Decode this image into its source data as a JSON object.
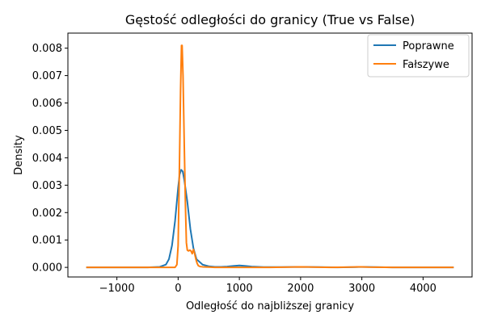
{
  "chart_data": {
    "type": "line",
    "title": "Gęstość odległości do granicy (True vs False)",
    "xlabel": "Odległość do najbliższej granicy",
    "ylabel": "Density",
    "xlim": [
      -1800,
      4800
    ],
    "ylim": [
      -0.00035,
      0.00855
    ],
    "xticks": [
      -1000,
      0,
      1000,
      2000,
      3000,
      4000
    ],
    "xtick_labels": [
      "−1000",
      "0",
      "1000",
      "2000",
      "3000",
      "4000"
    ],
    "yticks": [
      0.0,
      0.001,
      0.002,
      0.003,
      0.004,
      0.005,
      0.006,
      0.007,
      0.008
    ],
    "ytick_labels": [
      "0.000",
      "0.001",
      "0.002",
      "0.003",
      "0.004",
      "0.005",
      "0.006",
      "0.007",
      "0.008"
    ],
    "grid": false,
    "legend_position": "top-right",
    "series": [
      {
        "name": "Poprawne",
        "color": "#1f77b4",
        "x": [
          -1500,
          -500,
          -300,
          -200,
          -150,
          -100,
          -50,
          0,
          25,
          50,
          75,
          100,
          150,
          200,
          250,
          300,
          400,
          500,
          600,
          700,
          800,
          900,
          1000,
          1100,
          1200,
          1400,
          1700,
          2000,
          2300,
          2600,
          2900,
          3000,
          3200,
          3500,
          4000,
          4500
        ],
        "y": [
          0.0,
          0.0,
          2e-05,
          0.0001,
          0.0003,
          0.0008,
          0.0017,
          0.0029,
          0.0034,
          0.00356,
          0.0035,
          0.0032,
          0.0024,
          0.0014,
          0.0007,
          0.0003,
          0.0001,
          4e-05,
          2e-05,
          2e-05,
          3e-05,
          5e-05,
          7e-05,
          5e-05,
          3e-05,
          1e-05,
          1e-05,
          2e-05,
          1e-05,
          0.0,
          1e-05,
          2e-05,
          1e-05,
          0.0,
          0.0,
          0.0
        ]
      },
      {
        "name": "Fałszywe",
        "color": "#ff7f0e",
        "x": [
          -1500,
          -500,
          -100,
          -50,
          -20,
          0,
          20,
          40,
          55,
          65,
          80,
          100,
          120,
          135,
          150,
          170,
          190,
          210,
          230,
          250,
          270,
          290,
          310,
          330,
          360,
          400,
          500,
          600,
          800,
          1000,
          1500,
          1800,
          2000,
          2200,
          2500,
          2800,
          2950,
          3000,
          3100,
          3500,
          4000,
          4500
        ],
        "y": [
          0.0,
          0.0,
          0.0,
          0.0,
          0.0001,
          0.0008,
          0.0035,
          0.0065,
          0.0081,
          0.0081,
          0.007,
          0.0045,
          0.0022,
          0.0009,
          0.00063,
          0.0006,
          0.00063,
          0.0006,
          0.0005,
          0.00065,
          0.0005,
          0.0003,
          0.00015,
          6e-05,
          3e-05,
          2e-05,
          1e-05,
          0.0,
          0.0,
          0.0,
          0.0,
          1e-05,
          2e-05,
          1e-05,
          0.0,
          1e-05,
          2e-05,
          2e-05,
          1e-05,
          0.0,
          0.0,
          0.0
        ]
      }
    ]
  }
}
